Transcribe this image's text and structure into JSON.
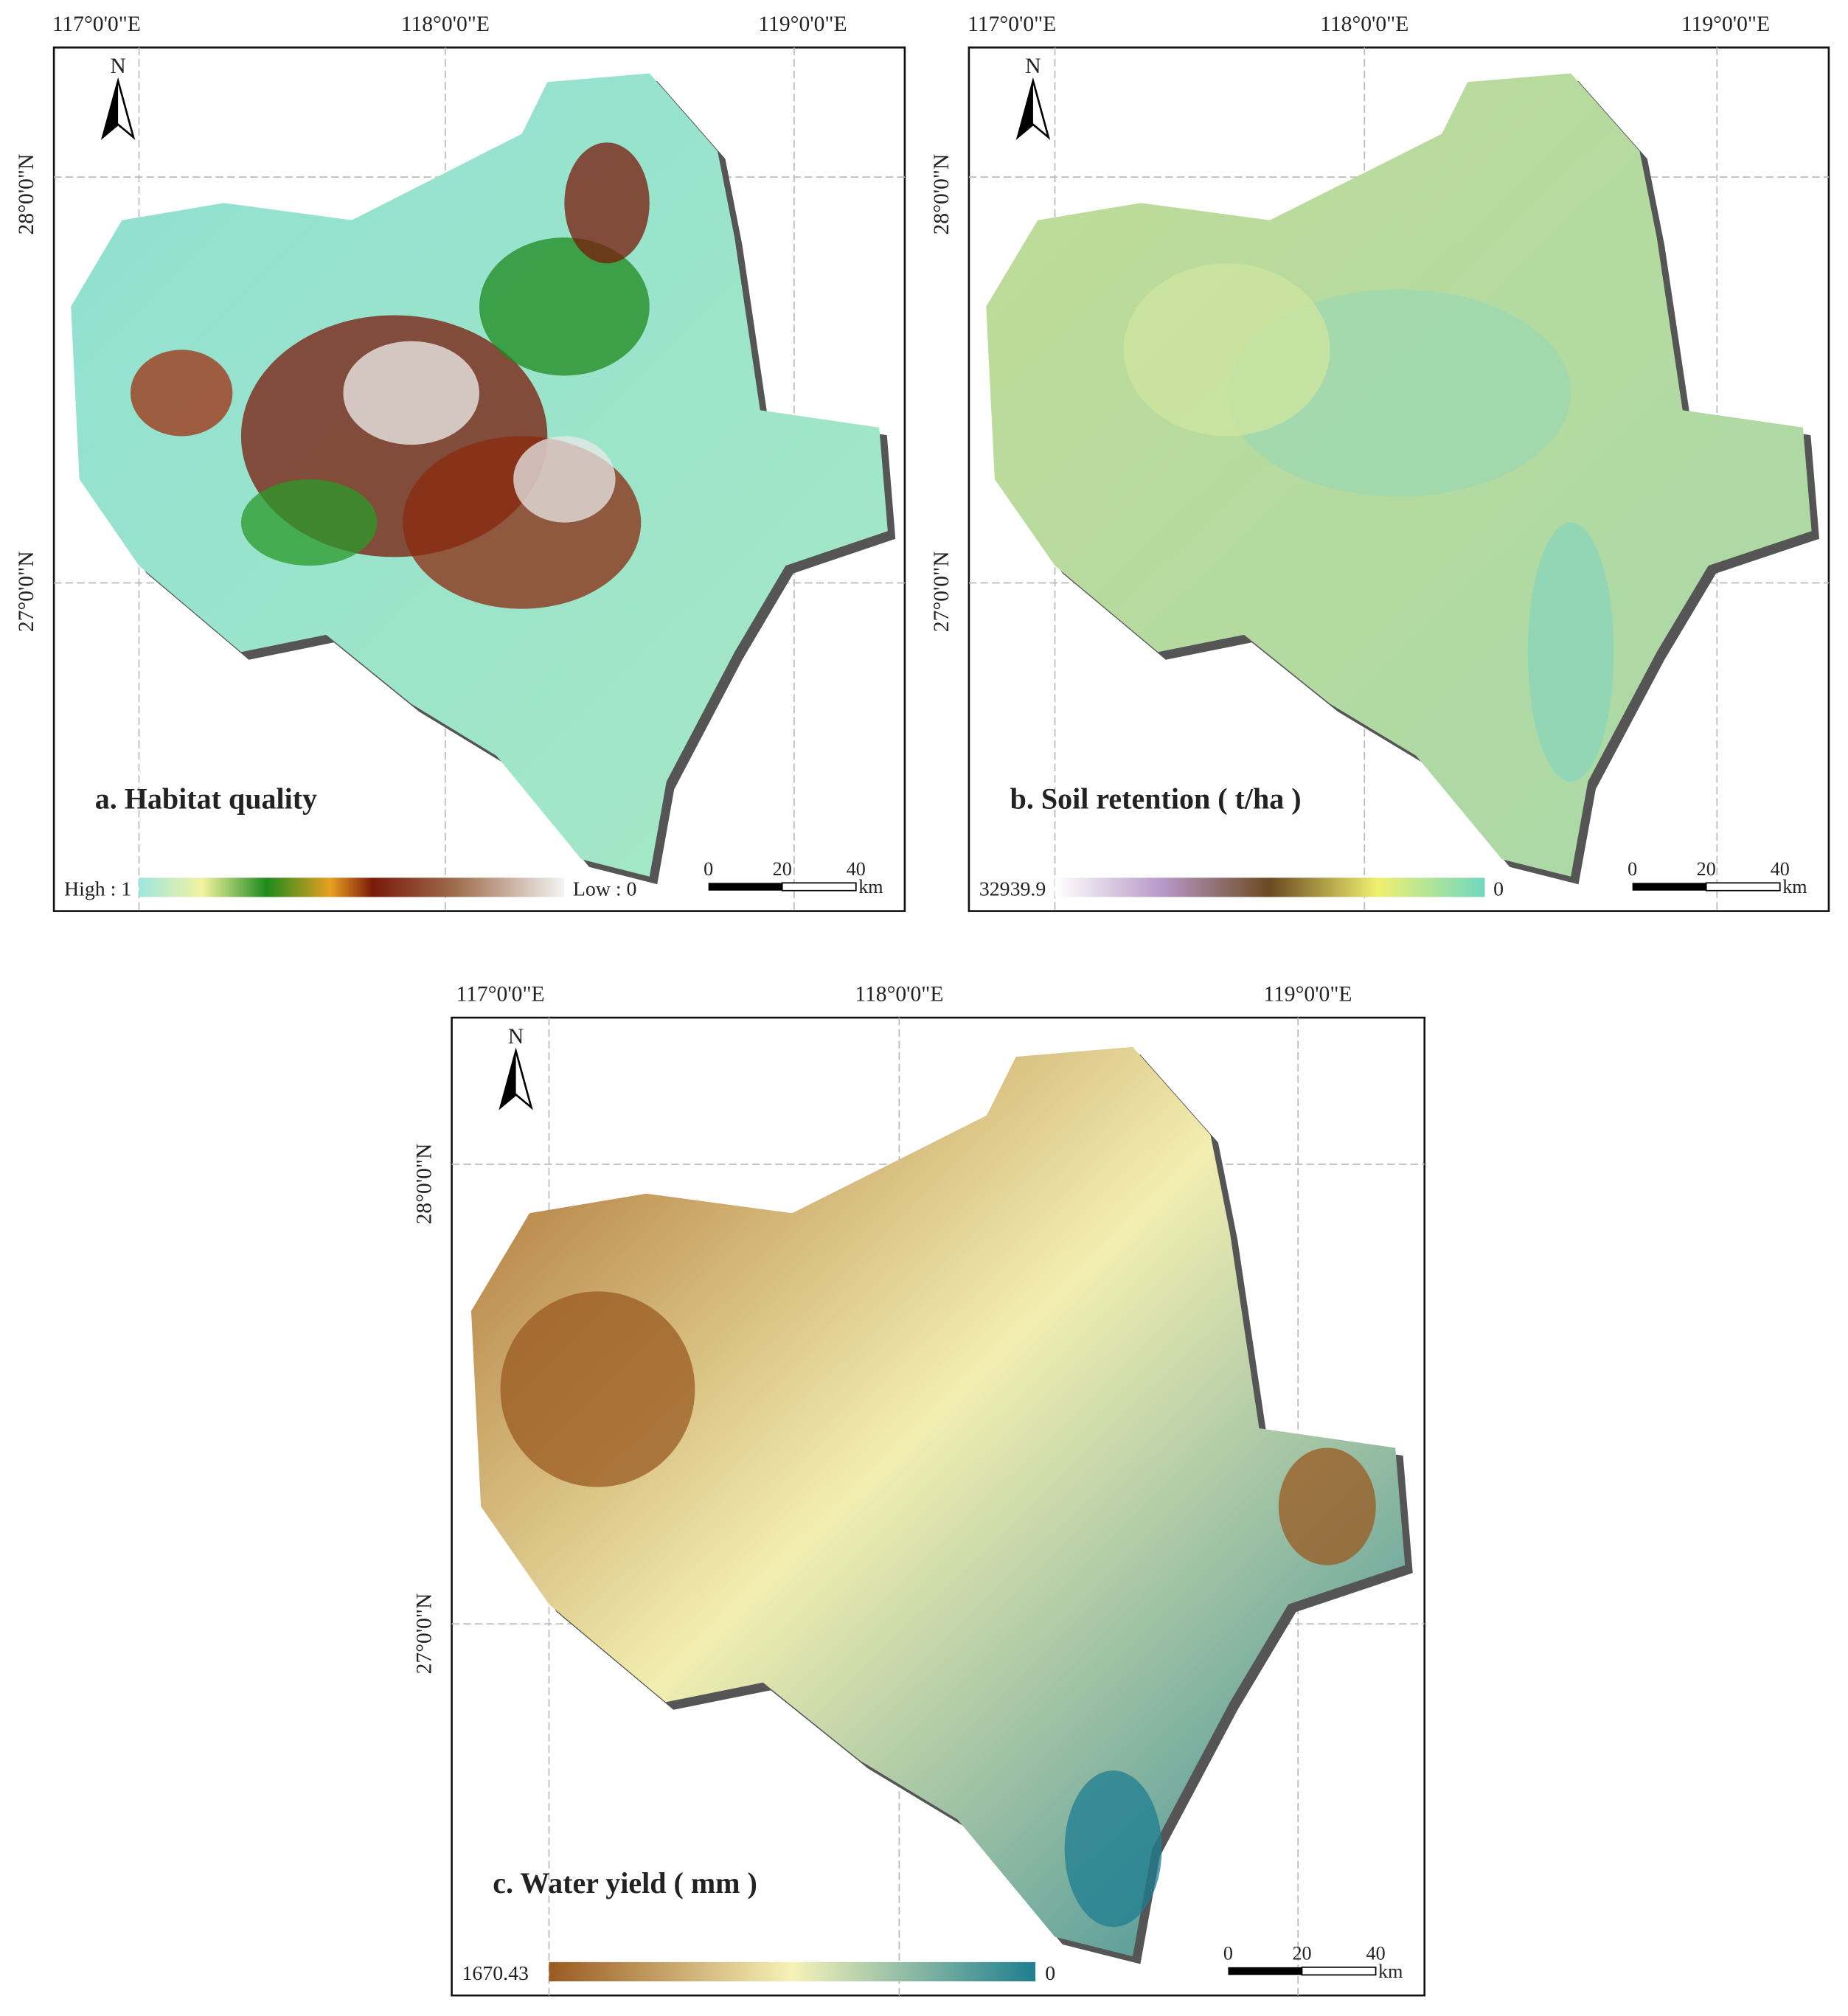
{
  "panels": [
    {
      "title": "a. Habitat quality",
      "lon_labels": [
        "117°0'0\"E",
        "118°0'0\"E",
        "119°0'0\"E"
      ],
      "lat_labels": [
        "28°0'0\"N",
        "27°0'0\"N"
      ],
      "north": "N",
      "legend": {
        "start": "High : 1",
        "end": "Low : 0"
      },
      "scale": {
        "ticks": [
          0,
          20,
          40
        ],
        "unit": "km"
      }
    },
    {
      "title": "b. Soil retention ( t/ha )",
      "lon_labels": [
        "117°0'0\"E",
        "118°0'0\"E",
        "119°0'0\"E"
      ],
      "lat_labels": [
        "28°0'0\"N",
        "27°0'0\"N"
      ],
      "north": "N",
      "legend": {
        "start": "32939.9",
        "end": "0"
      },
      "scale": {
        "ticks": [
          0,
          20,
          40
        ],
        "unit": "km"
      }
    },
    {
      "title": "c. Water yield ( mm )",
      "lon_labels": [
        "117°0'0\"E",
        "118°0'0\"E",
        "119°0'0\"E"
      ],
      "lat_labels": [
        "28°0'0\"N",
        "27°0'0\"N"
      ],
      "north": "N",
      "legend": {
        "start": "1670.43",
        "end": "0"
      },
      "scale": {
        "ticks": [
          0,
          20,
          40
        ],
        "unit": "km"
      }
    }
  ]
}
